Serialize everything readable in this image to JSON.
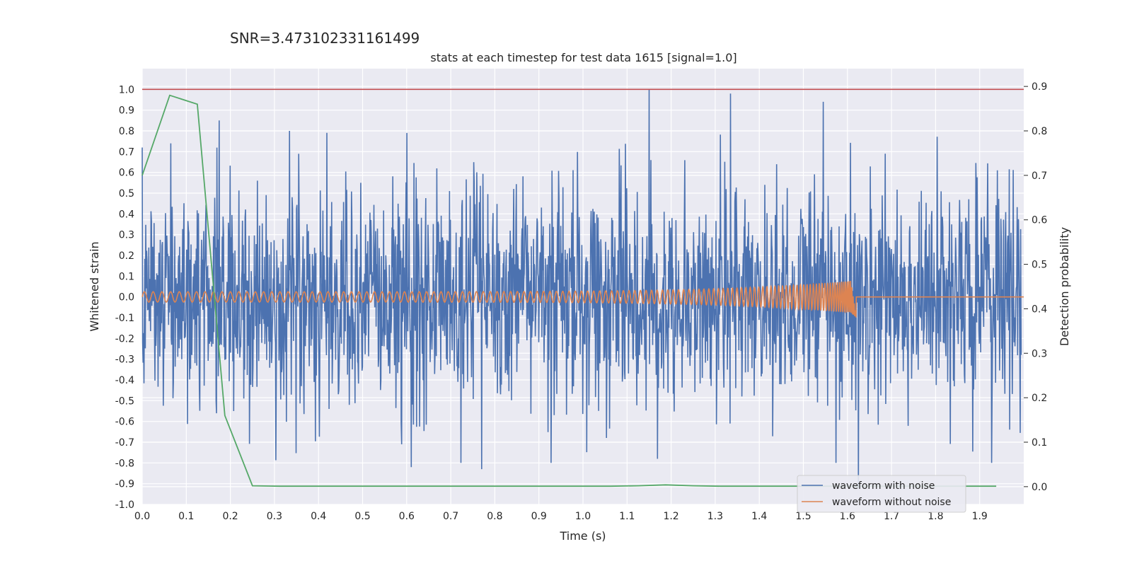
{
  "suptitle": "SNR=3.473102331161499",
  "chart_data": {
    "type": "line",
    "title": "stats at each timestep for test data 1615 [signal=1.0]",
    "xlabel": "Time (s)",
    "ylabel": "Whitened strain",
    "y2label": "Detection probability",
    "xlim": [
      0.0,
      2.0
    ],
    "ylim": [
      -1.0,
      1.1
    ],
    "y2lim": [
      -0.04,
      0.94
    ],
    "x_ticks": [
      "0.0",
      "0.1",
      "0.2",
      "0.3",
      "0.4",
      "0.5",
      "0.6",
      "0.7",
      "0.8",
      "0.9",
      "1.0",
      "1.1",
      "1.2",
      "1.3",
      "1.4",
      "1.5",
      "1.6",
      "1.7",
      "1.8",
      "1.9"
    ],
    "y_ticks": [
      "1.0",
      "0.9",
      "0.8",
      "0.7",
      "0.6",
      "0.5",
      "0.4",
      "0.3",
      "0.2",
      "0.1",
      "0.0",
      "-0.1",
      "-0.2",
      "-0.3",
      "-0.4",
      "-0.5",
      "-0.6",
      "-0.7",
      "-0.8",
      "-0.9",
      "-1.0"
    ],
    "y2_ticks": [
      "0.9",
      "0.8",
      "0.7",
      "0.6",
      "0.5",
      "0.4",
      "0.3",
      "0.2",
      "0.1",
      "0.0"
    ],
    "grid": true,
    "legend_position": "lower-right",
    "series": [
      {
        "name": "waveform with noise",
        "color": "#4c72b0",
        "axis": "left",
        "sampled": "noise",
        "approx_range": [
          -0.95,
          1.0
        ],
        "notable_peaks": [
          {
            "x": 0.0,
            "y": 0.72
          },
          {
            "x": 0.065,
            "y": 0.74
          },
          {
            "x": 0.175,
            "y": 0.85
          },
          {
            "x": 0.6,
            "y": 0.79
          },
          {
            "x": 0.61,
            "y": -0.82
          },
          {
            "x": 0.77,
            "y": -0.83
          },
          {
            "x": 1.15,
            "y": 1.0
          },
          {
            "x": 1.335,
            "y": 0.98
          },
          {
            "x": 1.545,
            "y": 0.94
          },
          {
            "x": 1.625,
            "y": -0.92
          },
          {
            "x": 1.94,
            "y": 0.61
          }
        ]
      },
      {
        "name": "waveform without noise",
        "color": "#dd8452",
        "axis": "left",
        "sampled": "chirp",
        "chirp_end_time": 1.62,
        "start_amplitude": 0.025,
        "end_amplitude": 0.08
      },
      {
        "name": "",
        "color": "#55a868",
        "axis": "right",
        "x": [
          0.0,
          0.0625,
          0.125,
          0.1875,
          0.25,
          0.3125,
          0.375,
          0.4375,
          0.5,
          0.5625,
          0.625,
          0.6875,
          0.75,
          0.8125,
          0.875,
          0.9375,
          1.0,
          1.0625,
          1.125,
          1.1875,
          1.25,
          1.3125,
          1.375,
          1.4375,
          1.5,
          1.5625,
          1.625,
          1.6875,
          1.75,
          1.8125,
          1.875,
          1.9375
        ],
        "y": [
          0.7,
          0.88,
          0.86,
          0.16,
          0.002,
          0.001,
          0.001,
          0.001,
          0.001,
          0.001,
          0.001,
          0.001,
          0.001,
          0.001,
          0.001,
          0.001,
          0.001,
          0.001,
          0.002,
          0.004,
          0.002,
          0.001,
          0.001,
          0.001,
          0.001,
          0.001,
          0.001,
          0.001,
          0.001,
          0.001,
          0.001,
          0.001
        ]
      },
      {
        "name": "",
        "color": "#c44e52",
        "axis": "left",
        "type": "hline",
        "y": 1.0
      }
    ]
  }
}
